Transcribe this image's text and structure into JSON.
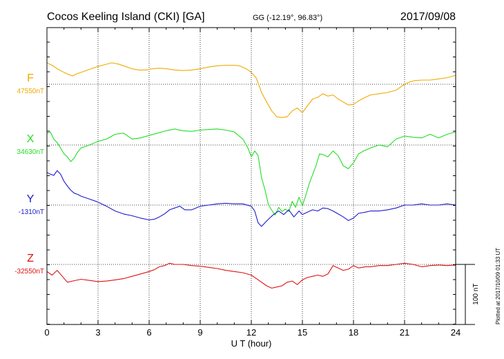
{
  "header": {
    "title": "Cocos Keeling Island (CKI)  [GA]",
    "coords": "GG (-12.19°,  96.83°)",
    "date": "2017/09/08"
  },
  "footer": {
    "xlabel": "U T (hour)",
    "plotted": "Plotted at 2017/10/09 01:33 UT",
    "scale_label": "100 nT"
  },
  "colors": {
    "F": "#f0a800",
    "X": "#22dd22",
    "Y": "#1a1acc",
    "Z": "#dd1111",
    "axis": "#000000"
  },
  "chart_data": {
    "type": "line",
    "x_ticks": [
      0,
      3,
      6,
      9,
      12,
      15,
      18,
      21,
      24
    ],
    "xlim": [
      0,
      24
    ],
    "xlabel": "U T (hour)",
    "scale_nT": 100,
    "grid": true,
    "series": [
      {
        "name": "F",
        "baseline_label": "47550nT",
        "x": [
          0,
          0.3,
          0.6,
          1.0,
          1.3,
          1.5,
          1.8,
          2.2,
          2.6,
          3.0,
          3.4,
          3.8,
          4.2,
          4.6,
          5.0,
          5.4,
          5.8,
          6.2,
          6.6,
          7.0,
          7.5,
          8.0,
          8.5,
          9.0,
          9.5,
          10.0,
          10.5,
          11.0,
          11.3,
          11.7,
          12.0,
          12.3,
          12.6,
          12.9,
          13.2,
          13.5,
          13.8,
          14.1,
          14.4,
          14.7,
          15.0,
          15.3,
          15.6,
          15.9,
          16.2,
          16.5,
          16.8,
          17.1,
          17.4,
          17.7,
          18.0,
          18.3,
          18.7,
          19.0,
          19.5,
          20.0,
          20.5,
          21.0,
          21.3,
          21.6,
          22.0,
          22.5,
          23.0,
          23.5,
          24.0
        ],
        "y": [
          36,
          32,
          26,
          20,
          16,
          14,
          18,
          22,
          26,
          30,
          33,
          36,
          34,
          30,
          26,
          24,
          24,
          26,
          27,
          26,
          24,
          23,
          24,
          26,
          29,
          31,
          32,
          32,
          31,
          26,
          20,
          10,
          -14,
          -30,
          -45,
          -55,
          -56,
          -55,
          -45,
          -40,
          -48,
          -36,
          -25,
          -22,
          -16,
          -20,
          -18,
          -25,
          -30,
          -35,
          -34,
          -28,
          -22,
          -18,
          -16,
          -14,
          -10,
          0,
          4,
          6,
          7,
          7,
          9,
          11,
          15
        ]
      },
      {
        "name": "X",
        "baseline_label": "34630nT",
        "x": [
          0,
          0.2,
          0.4,
          0.6,
          0.8,
          1.0,
          1.2,
          1.4,
          1.6,
          1.8,
          2.0,
          2.5,
          3.0,
          3.5,
          4.0,
          4.5,
          5.0,
          5.5,
          6.0,
          6.5,
          7.0,
          7.5,
          8.0,
          8.5,
          9.0,
          9.5,
          10.0,
          10.5,
          11.0,
          11.5,
          11.8,
          12.0,
          12.2,
          12.4,
          12.6,
          12.8,
          13.0,
          13.2,
          13.4,
          13.6,
          13.8,
          14.0,
          14.2,
          14.4,
          14.6,
          14.8,
          15.0,
          15.2,
          15.4,
          15.6,
          15.8,
          16.0,
          16.2,
          16.5,
          16.8,
          17.1,
          17.4,
          17.7,
          18.0,
          18.3,
          18.6,
          19.0,
          19.5,
          20.0,
          20.5,
          21.0,
          21.5,
          22.0,
          22.5,
          23.0,
          23.5,
          24.0
        ],
        "y": [
          20,
          22,
          10,
          4,
          -5,
          -15,
          -20,
          -28,
          -22,
          -12,
          -5,
          0,
          6,
          10,
          18,
          20,
          10,
          12,
          16,
          20,
          24,
          27,
          24,
          23,
          25,
          26,
          27,
          25,
          22,
          10,
          -5,
          -20,
          -10,
          -18,
          -55,
          -75,
          -100,
          -110,
          -118,
          -105,
          -112,
          -108,
          -112,
          -95,
          -105,
          -88,
          -102,
          -85,
          -65,
          -50,
          -35,
          -15,
          -16,
          -20,
          -10,
          -18,
          -35,
          -40,
          -30,
          -15,
          -10,
          -5,
          0,
          -3,
          10,
          15,
          13,
          12,
          18,
          12,
          18,
          22
        ]
      },
      {
        "name": "Y",
        "baseline_label": "-1310nT",
        "x": [
          0,
          0.2,
          0.4,
          0.6,
          0.8,
          1.0,
          1.2,
          1.4,
          1.6,
          1.8,
          2.0,
          2.5,
          3.0,
          3.5,
          4.0,
          4.5,
          5.0,
          5.5,
          6.0,
          6.3,
          6.6,
          6.9,
          7.2,
          7.5,
          7.8,
          8.1,
          8.5,
          9.0,
          9.5,
          10.0,
          10.5,
          11.0,
          11.5,
          12.0,
          12.2,
          12.4,
          12.6,
          12.8,
          13.0,
          13.3,
          13.6,
          13.9,
          14.2,
          14.5,
          14.8,
          15.0,
          15.3,
          15.6,
          15.9,
          16.2,
          16.5,
          16.8,
          17.1,
          17.4,
          17.7,
          18.0,
          18.3,
          18.7,
          19.0,
          19.5,
          20.0,
          20.5,
          21.0,
          21.5,
          22.0,
          22.5,
          23.0,
          23.5,
          24.0
        ],
        "y": [
          55,
          52,
          50,
          58,
          52,
          40,
          32,
          25,
          20,
          18,
          15,
          10,
          5,
          -2,
          -10,
          -15,
          -18,
          -22,
          -25,
          -24,
          -20,
          -15,
          -8,
          -5,
          -2,
          -8,
          -8,
          -2,
          0,
          2,
          3,
          2,
          2,
          -2,
          -10,
          -30,
          -36,
          -30,
          -24,
          -16,
          -10,
          -16,
          -8,
          -20,
          -10,
          -16,
          -12,
          -8,
          -10,
          -5,
          -6,
          -10,
          -15,
          -20,
          -26,
          -22,
          -14,
          -12,
          -10,
          -10,
          -8,
          -5,
          0,
          0,
          2,
          0,
          0,
          2,
          0
        ]
      },
      {
        "name": "Z",
        "baseline_label": "-32550nT",
        "x": [
          0,
          0.3,
          0.6,
          0.9,
          1.2,
          1.5,
          2.0,
          2.5,
          3.0,
          3.5,
          4.0,
          4.5,
          5.0,
          5.5,
          6.0,
          6.3,
          6.6,
          6.9,
          7.2,
          7.5,
          8.0,
          8.5,
          9.0,
          9.5,
          10.0,
          10.5,
          11.0,
          11.5,
          12.0,
          12.3,
          12.6,
          12.9,
          13.2,
          13.5,
          13.8,
          14.1,
          14.4,
          14.7,
          15.0,
          15.3,
          15.6,
          15.9,
          16.2,
          16.5,
          16.8,
          17.1,
          17.4,
          17.7,
          18.0,
          18.3,
          18.7,
          19.0,
          19.5,
          20.0,
          20.5,
          21.0,
          21.5,
          22.0,
          22.5,
          23.0,
          23.5,
          24.0
        ],
        "y": [
          -12,
          -18,
          -10,
          -20,
          -30,
          -28,
          -25,
          -27,
          -29,
          -28,
          -26,
          -24,
          -20,
          -16,
          -12,
          -9,
          -4,
          -2,
          2,
          0,
          0,
          -2,
          -3,
          -5,
          -7,
          -10,
          -12,
          -14,
          -18,
          -24,
          -30,
          -36,
          -40,
          -38,
          -36,
          -30,
          -28,
          -34,
          -26,
          -22,
          -20,
          -18,
          -20,
          -16,
          -2,
          -6,
          -10,
          -8,
          -2,
          -6,
          -4,
          -4,
          -2,
          -2,
          0,
          2,
          0,
          -4,
          -2,
          -1,
          -2,
          -1
        ]
      }
    ]
  }
}
